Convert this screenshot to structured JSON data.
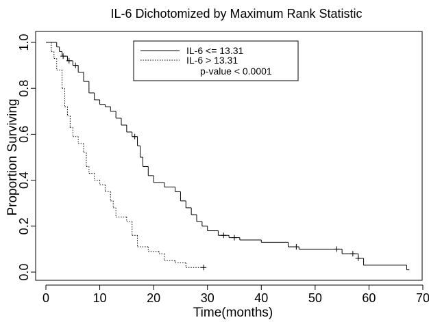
{
  "chart_data": {
    "type": "km",
    "title": "IL-6 Dichotomized by Maximum Rank Statistic",
    "x_label": "Time(months)",
    "y_label": "Proportion Surviving",
    "annotation": "p-value < 0.0001",
    "xlim": [
      0,
      70
    ],
    "ylim": [
      0,
      1
    ],
    "xticks": [
      0,
      10,
      20,
      30,
      40,
      50,
      60,
      70
    ],
    "yticks": [
      {
        "value": 0,
        "label": "0.0"
      },
      0.2,
      0.4,
      0.6,
      0.8,
      {
        "value": 1,
        "label": "1.0"
      }
    ],
    "series": [
      {
        "name": "IL-6 <= 13.31",
        "color": "#000000",
        "dash": "none",
        "x": [
          0,
          2,
          2.5,
          3,
          4,
          5,
          6,
          7,
          8,
          9,
          10,
          11,
          12,
          13,
          14,
          15,
          16,
          17,
          17.5,
          18,
          19,
          20,
          22,
          24,
          25,
          26,
          27,
          28,
          29,
          30,
          32,
          34,
          36,
          40,
          45,
          47,
          55,
          58,
          59,
          67,
          67.5
        ],
        "values": [
          1,
          0.98,
          0.96,
          0.94,
          0.92,
          0.9,
          0.87,
          0.83,
          0.78,
          0.75,
          0.73,
          0.72,
          0.7,
          0.67,
          0.64,
          0.61,
          0.59,
          0.55,
          0.5,
          0.46,
          0.42,
          0.39,
          0.37,
          0.35,
          0.31,
          0.28,
          0.25,
          0.22,
          0.2,
          0.18,
          0.16,
          0.15,
          0.14,
          0.13,
          0.11,
          0.1,
          0.08,
          0.06,
          0.03,
          0.01,
          0.01
        ],
        "censored": [
          3.2,
          4.3,
          5.5,
          16.5,
          33,
          35,
          46.5,
          54,
          57,
          58
        ]
      },
      {
        "name": "IL-6 > 13.31",
        "color": "#000000",
        "dash": "1.5,2",
        "x": [
          0,
          1,
          1.5,
          2,
          3,
          3.5,
          4,
          4.5,
          5,
          6,
          7,
          7.5,
          8,
          9,
          10,
          11,
          12,
          12.5,
          13,
          15,
          16,
          17,
          19,
          21,
          22,
          24,
          26,
          29.5
        ],
        "values": [
          1,
          0.96,
          0.93,
          0.88,
          0.8,
          0.72,
          0.68,
          0.63,
          0.59,
          0.56,
          0.52,
          0.46,
          0.43,
          0.4,
          0.38,
          0.35,
          0.31,
          0.28,
          0.24,
          0.22,
          0.16,
          0.11,
          0.09,
          0.08,
          0.05,
          0.04,
          0.02,
          0.02
        ],
        "censored": [
          29.3
        ]
      }
    ]
  }
}
